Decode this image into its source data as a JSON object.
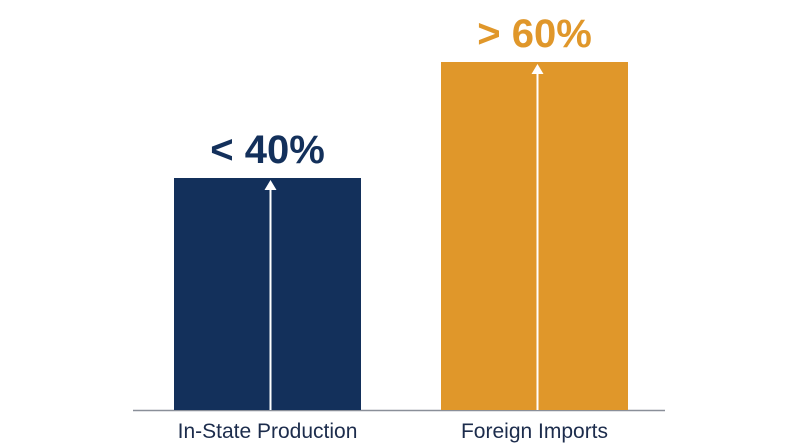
{
  "chart_data": {
    "type": "bar",
    "categories": [
      "In-State Production",
      "Foreign Imports"
    ],
    "values": [
      40,
      60
    ],
    "value_labels": [
      "< 40%",
      "> 60%"
    ],
    "colors": [
      "#13305b",
      "#e0972a"
    ]
  }
}
